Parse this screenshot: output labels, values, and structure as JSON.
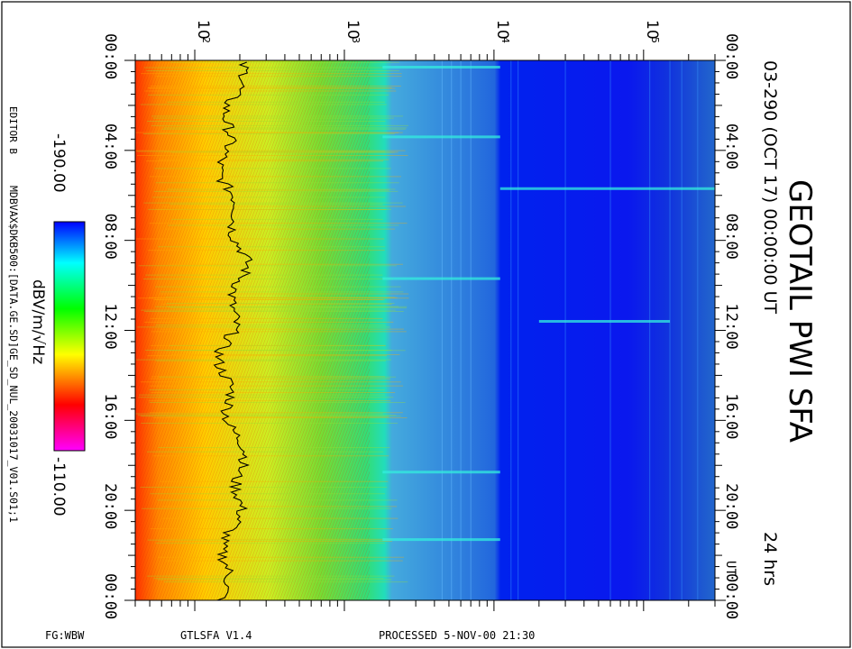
{
  "chart_data": {
    "type": "heatmap",
    "title": "GEOTAIL PWI SFA",
    "subtitle": "03-290 (OCT 17) 00:00:00 UT",
    "duration_label": "24 hrs",
    "x_scale": "log",
    "x_range": [
      40,
      300000
    ],
    "x_ticks": [
      {
        "value": 100,
        "base": "10",
        "exp": "2"
      },
      {
        "value": 1000,
        "base": "10",
        "exp": "3"
      },
      {
        "value": 10000,
        "base": "10",
        "exp": "4"
      },
      {
        "value": 100000,
        "base": "10",
        "exp": "5"
      }
    ],
    "y_range_hours": [
      0,
      24
    ],
    "y_ticks": [
      {
        "hours": 0,
        "label": "00:00"
      },
      {
        "hours": 4,
        "label": "04:00"
      },
      {
        "hours": 8,
        "label": "08:00"
      },
      {
        "hours": 12,
        "label": "12:00"
      },
      {
        "hours": 16,
        "label": "16:00"
      },
      {
        "hours": 20,
        "label": "20:00"
      },
      {
        "hours": 24,
        "label": "00:00"
      }
    ],
    "ut_label": "UT",
    "colorbar": {
      "unit_label": "dBV/m/√Hz",
      "min_label": "-190.00",
      "max_label": "-110.00",
      "min": -190,
      "max": -110,
      "colors": [
        "#ff00ff",
        "#ff0000",
        "#ffff00",
        "#00ff00",
        "#00ffff",
        "#0000ff"
      ]
    },
    "band_edges": [
      1800,
      11000
    ],
    "emission_lines": [
      {
        "hours": 0.3,
        "x_from": 1800,
        "x_to": 11000
      },
      {
        "hours": 3.4,
        "x_from": 1800,
        "x_to": 11000
      },
      {
        "hours": 5.7,
        "x_from": 11000,
        "x_to": 300000
      },
      {
        "hours": 9.7,
        "x_from": 1800,
        "x_to": 11000
      },
      {
        "hours": 11.6,
        "x_from": 20000,
        "x_to": 150000
      },
      {
        "hours": 18.3,
        "x_from": 1800,
        "x_to": 11000
      },
      {
        "hours": 21.3,
        "x_from": 1800,
        "x_to": 11000
      }
    ]
  },
  "side_labels": {
    "editor": "EDITOR B",
    "dataset": "MDBVAX$DKB500:[DATA.GE.SD]GE_SD_NUL_20031017_V01.S01;1"
  },
  "footer": {
    "format": "FG:WBW",
    "program": "GTLSFA   V1.4",
    "processed": "PROCESSED   5-NOV-00   21:30"
  }
}
